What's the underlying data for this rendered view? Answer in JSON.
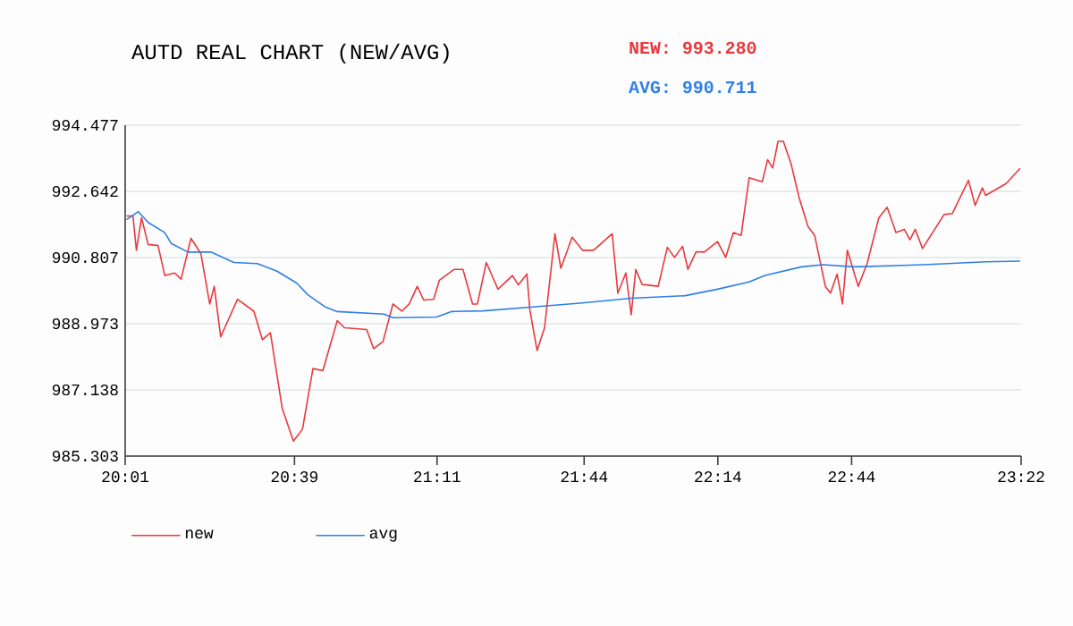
{
  "chart_data": {
    "type": "line",
    "title": "AUTD REAL CHART (NEW/AVG)",
    "annotations": [
      "NEW: 993.280",
      "AVG: 990.711"
    ],
    "xlim": [
      20.017,
      23.367
    ],
    "xticks": [
      {
        "value": 20.017,
        "label": "20:01"
      },
      {
        "value": 20.65,
        "label": "20:39"
      },
      {
        "value": 21.183,
        "label": "21:11"
      },
      {
        "value": 21.733,
        "label": "21:44"
      },
      {
        "value": 22.233,
        "label": "22:14"
      },
      {
        "value": 22.733,
        "label": "22:44"
      },
      {
        "value": 23.367,
        "label": "23:22"
      }
    ],
    "ylim": [
      985.303,
      994.477
    ],
    "yticks": [
      985.303,
      987.138,
      988.973,
      990.807,
      992.642,
      994.477
    ],
    "grid": "y",
    "legend": "bottom",
    "marker": "none",
    "line_style": "solid",
    "series": [
      {
        "name": "new",
        "color": "#e8393e",
        "x": [
          20.022,
          20.046,
          20.059,
          20.078,
          20.103,
          20.14,
          20.165,
          20.202,
          20.226,
          20.263,
          20.3,
          20.333,
          20.35,
          20.374,
          20.437,
          20.498,
          20.53,
          20.56,
          20.604,
          20.646,
          20.68,
          20.719,
          20.756,
          20.81,
          20.837,
          20.92,
          20.946,
          20.981,
          21.018,
          21.051,
          21.079,
          21.109,
          21.133,
          21.17,
          21.192,
          21.247,
          21.28,
          21.316,
          21.334,
          21.367,
          21.411,
          21.465,
          21.487,
          21.519,
          21.53,
          21.557,
          21.585,
          21.624,
          21.646,
          21.688,
          21.727,
          21.768,
          21.838,
          21.859,
          21.889,
          21.909,
          21.926,
          21.95,
          22.01,
          22.044,
          22.071,
          22.101,
          22.121,
          22.152,
          22.182,
          22.232,
          22.262,
          22.291,
          22.32,
          22.35,
          22.399,
          22.419,
          22.438,
          22.458,
          22.478,
          22.507,
          22.536,
          22.57,
          22.595,
          22.635,
          22.654,
          22.679,
          22.699,
          22.717,
          22.758,
          22.791,
          22.835,
          22.866,
          22.899,
          22.93,
          22.951,
          22.971,
          22.998,
          23.079,
          23.11,
          23.17,
          23.195,
          23.222,
          23.234,
          23.311,
          23.363
        ],
        "values": [
          991.96,
          991.96,
          991.01,
          991.91,
          991.17,
          991.14,
          990.31,
          990.38,
          990.21,
          991.34,
          990.92,
          989.52,
          990.01,
          988.61,
          989.65,
          989.32,
          988.53,
          988.72,
          986.63,
          985.72,
          986.05,
          987.73,
          987.67,
          989.06,
          988.86,
          988.81,
          988.28,
          988.48,
          989.52,
          989.32,
          989.52,
          990.01,
          989.63,
          989.65,
          990.18,
          990.48,
          990.48,
          989.52,
          989.52,
          990.67,
          989.93,
          990.31,
          990.05,
          990.35,
          989.36,
          988.23,
          988.86,
          991.47,
          990.51,
          991.37,
          991.01,
          991.01,
          991.47,
          989.82,
          990.38,
          989.22,
          990.48,
          990.06,
          990.01,
          991.09,
          990.81,
          991.12,
          990.48,
          990.97,
          990.96,
          991.25,
          990.81,
          991.5,
          991.42,
          993.02,
          992.91,
          993.52,
          993.29,
          994.03,
          994.03,
          993.4,
          992.49,
          991.67,
          991.42,
          990.01,
          989.82,
          990.35,
          989.52,
          991.01,
          990.01,
          990.64,
          991.91,
          992.2,
          991.5,
          991.59,
          991.3,
          991.59,
          991.06,
          992.0,
          992.03,
          992.95,
          992.25,
          992.74,
          992.53,
          992.86,
          993.28
        ]
      },
      {
        "name": "avg",
        "color": "#2f7fe8",
        "x": [
          20.022,
          20.066,
          20.103,
          20.165,
          20.189,
          20.252,
          20.337,
          20.424,
          20.511,
          20.585,
          20.658,
          20.701,
          20.767,
          20.81,
          20.985,
          21.018,
          21.181,
          21.236,
          21.356,
          21.53,
          21.727,
          21.909,
          22.111,
          22.232,
          22.35,
          22.409,
          22.546,
          22.625,
          22.745,
          23.002,
          23.234,
          23.363
        ],
        "values": [
          991.86,
          992.08,
          991.78,
          991.5,
          991.2,
          990.96,
          990.96,
          990.67,
          990.64,
          990.43,
          990.1,
          989.77,
          989.43,
          989.31,
          989.24,
          989.14,
          989.16,
          989.31,
          989.33,
          989.43,
          989.55,
          989.68,
          989.75,
          989.93,
          990.13,
          990.31,
          990.55,
          990.61,
          990.55,
          990.61,
          990.69,
          990.71
        ]
      }
    ]
  }
}
